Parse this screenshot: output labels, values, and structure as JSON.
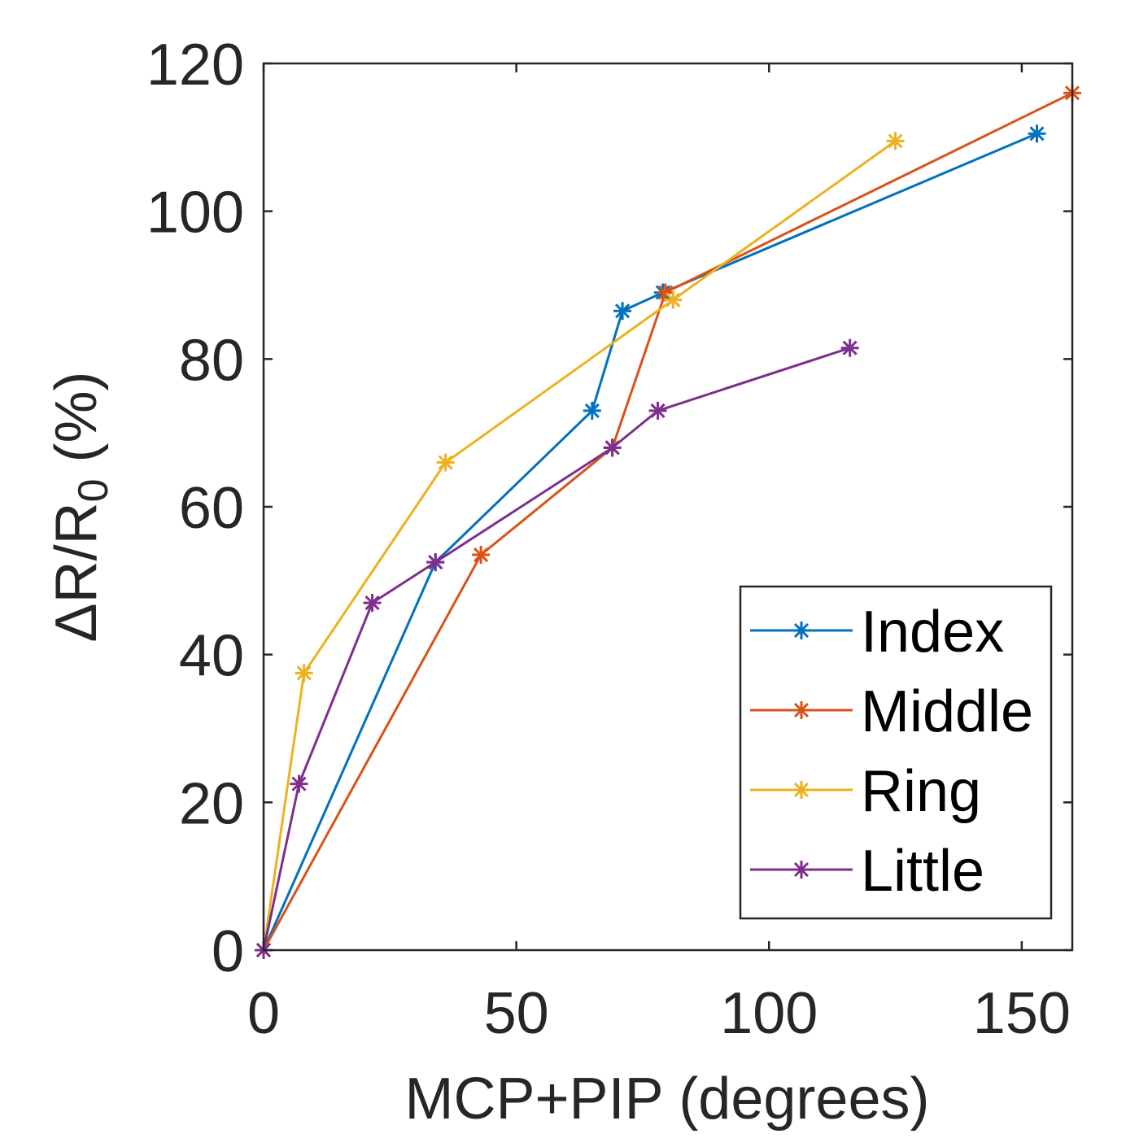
{
  "chart_data": {
    "type": "line",
    "title": "",
    "xlabel": "MCP+PIP (degrees)",
    "ylabel": {
      "main": "ΔR/R",
      "subscript": "0",
      "suffix": " (%)"
    },
    "xlim": [
      0,
      160
    ],
    "ylim": [
      0,
      120
    ],
    "xticks": [
      0,
      50,
      100,
      150
    ],
    "yticks": [
      0,
      20,
      40,
      60,
      80,
      100,
      120
    ],
    "grid": false,
    "legend_position": "bottom-right",
    "marker": "asterisk",
    "series": [
      {
        "name": "Index",
        "color": "#0072BD",
        "x": [
          0,
          34,
          65,
          71,
          79,
          153
        ],
        "y": [
          0,
          52.5,
          73,
          86.5,
          89,
          110.5
        ]
      },
      {
        "name": "Middle",
        "color": "#D95319",
        "x": [
          0,
          43,
          69,
          79.5,
          160
        ],
        "y": [
          0,
          53.5,
          68,
          89,
          116
        ]
      },
      {
        "name": "Ring",
        "color": "#EDB120",
        "x": [
          0,
          8,
          36,
          81,
          125
        ],
        "y": [
          0,
          37.5,
          66,
          88,
          109.5
        ]
      },
      {
        "name": "Little",
        "color": "#7E2F8E",
        "x": [
          0,
          7,
          21.5,
          34,
          69,
          78,
          116
        ],
        "y": [
          0,
          22.5,
          47,
          52.5,
          68,
          73,
          81.5
        ]
      }
    ]
  }
}
